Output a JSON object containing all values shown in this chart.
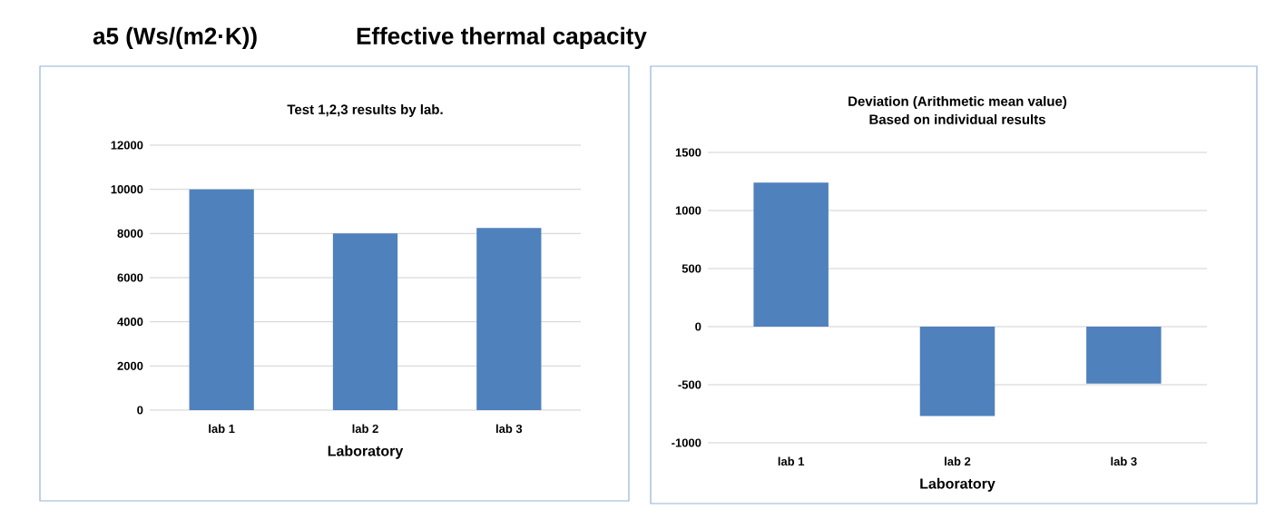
{
  "chart_data": [
    {
      "type": "other",
      "title": "a5 (Ws/(m2·K))",
      "subtitle": "Effective thermal capacity"
    },
    {
      "type": "bar",
      "title": "Test 1,2,3 results by lab.",
      "xlabel": "Laboratory",
      "categories": [
        "lab 1",
        "lab 2",
        "lab 3"
      ],
      "values": [
        10000,
        8000,
        8250
      ],
      "color": "#4f81bd",
      "ylim": [
        0,
        12000
      ],
      "yticks": [
        0,
        2000,
        4000,
        6000,
        8000,
        10000,
        12000
      ],
      "grid": "y"
    },
    {
      "type": "bar",
      "title": "Deviation (Arithmetic mean value)",
      "subtitle": "Based on individual results",
      "xlabel": "Laboratory",
      "categories": [
        "lab 1",
        "lab 2",
        "lab 3"
      ],
      "values": [
        1240,
        -770,
        -490
      ],
      "color": "#4f81bd",
      "ylim": [
        -1000,
        1500
      ],
      "yticks": [
        -1000,
        -500,
        0,
        500,
        1000,
        1500
      ],
      "grid": "y"
    }
  ]
}
